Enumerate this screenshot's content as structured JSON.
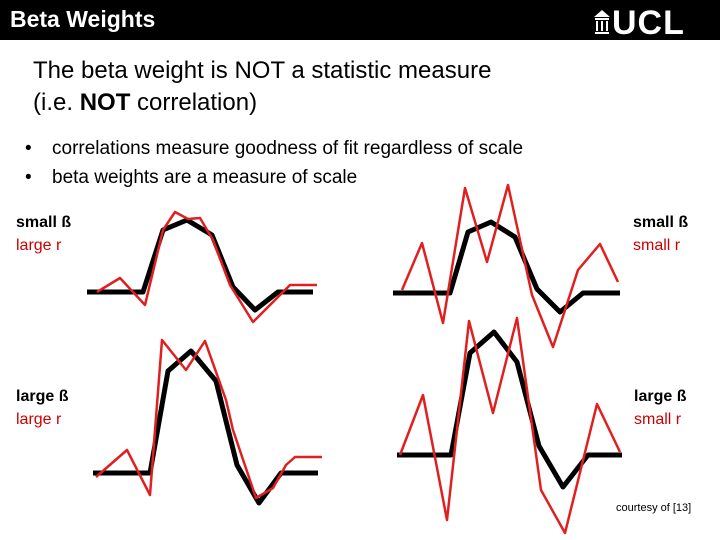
{
  "header": {
    "title": "Beta Weights",
    "logo_text": "UCL",
    "bg_color": "#000000"
  },
  "heading": {
    "line1_pre": "The beta weight is ",
    "line1_emph": "NOT",
    "line1_post": " a statistic measure",
    "line2_pre": "(i.e. ",
    "line2_emph": "NOT",
    "line2_post": " correlation)"
  },
  "bullets": [
    "correlations measure goodness of fit regardless of scale",
    "beta weights are a measure of scale"
  ],
  "panels": [
    {
      "beta_label": "small ß",
      "r_label": "large r"
    },
    {
      "beta_label": "small ß",
      "r_label": "small r"
    },
    {
      "beta_label": "large ß",
      "r_label": "large r"
    },
    {
      "beta_label": "large ß",
      "r_label": "small r"
    }
  ],
  "courtesy": "courtesy of [13]",
  "colors": {
    "model_line": "#000000",
    "data_line": "#e02020",
    "r_label": "#cc0000"
  }
}
